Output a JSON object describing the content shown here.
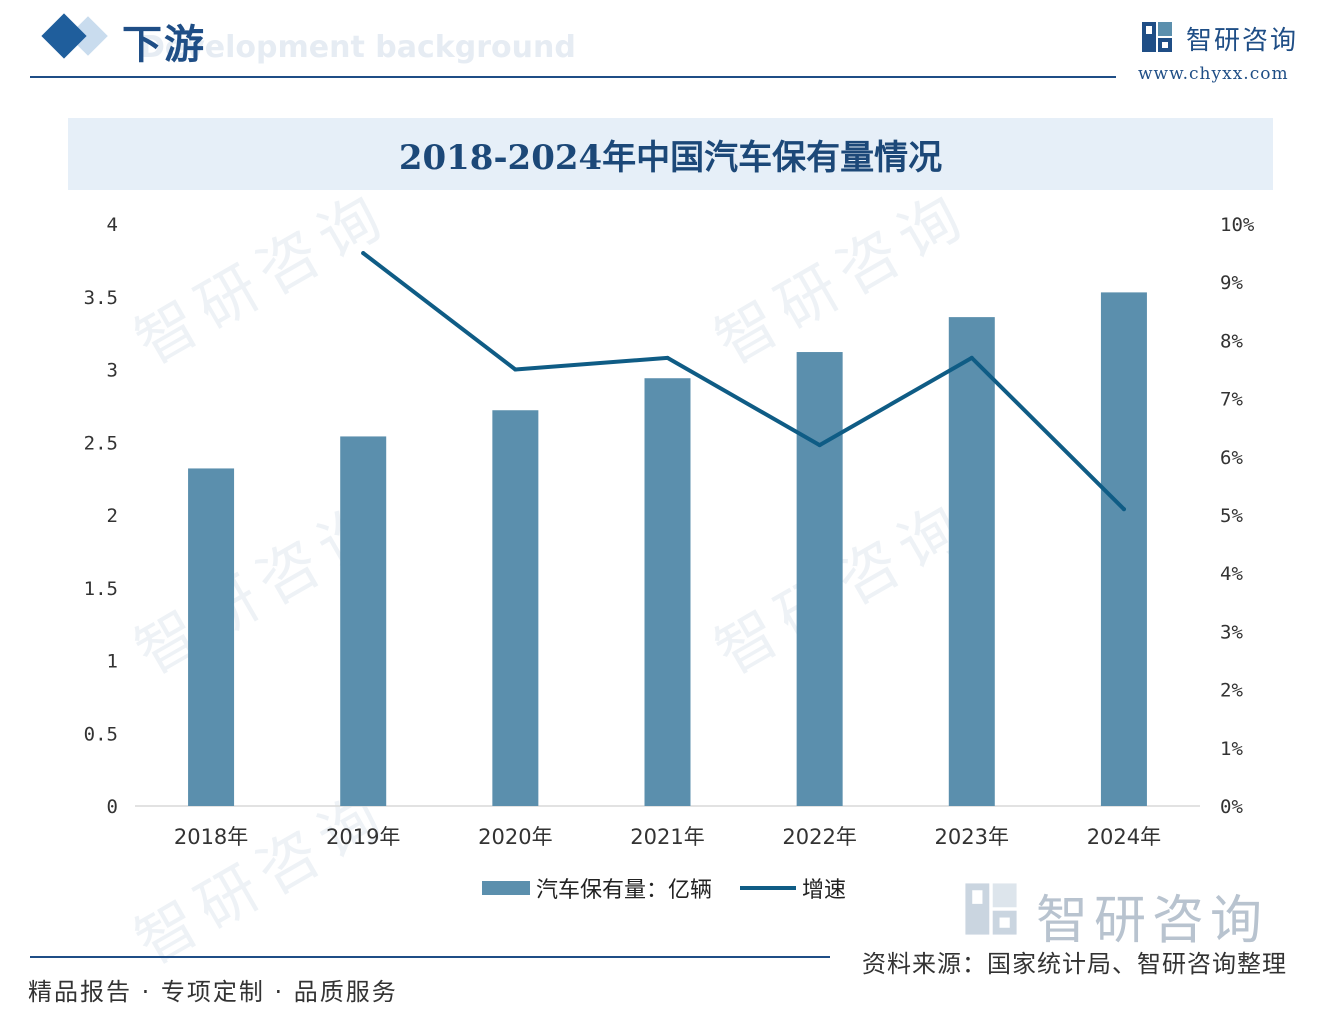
{
  "header": {
    "title": "下游",
    "subtitle": "Development background"
  },
  "brand": {
    "name": "智研咨询",
    "url": "www.chyxx.com"
  },
  "watermark_text": "智研咨询",
  "chart_data": {
    "type": "bar",
    "title": "2018-2024年中国汽车保有量情况",
    "categories": [
      "2018年",
      "2019年",
      "2020年",
      "2021年",
      "2022年",
      "2023年",
      "2024年"
    ],
    "series": [
      {
        "name": "汽车保有量：亿辆",
        "type": "bar",
        "axis": "left",
        "color": "#5b8fad",
        "values": [
          2.32,
          2.54,
          2.72,
          2.94,
          3.12,
          3.36,
          3.53
        ]
      },
      {
        "name": "增速",
        "type": "line",
        "axis": "right",
        "color": "#0f5c85",
        "values": [
          null,
          9.5,
          7.5,
          7.7,
          6.2,
          7.7,
          5.1
        ]
      }
    ],
    "yleft": {
      "range": [
        0,
        4
      ],
      "ticks": [
        "0",
        "0.5",
        "1",
        "1.5",
        "2",
        "2.5",
        "3",
        "3.5",
        "4"
      ]
    },
    "yright": {
      "range": [
        0,
        10
      ],
      "ticks": [
        "0%",
        "1%",
        "2%",
        "3%",
        "4%",
        "5%",
        "6%",
        "7%",
        "8%",
        "9%",
        "10%"
      ]
    },
    "grid": false,
    "legend_position": "bottom-center"
  },
  "footer": {
    "slogan": "精品报告 · 专项定制 · 品质服务",
    "source": "资料来源：国家统计局、智研咨询整理"
  }
}
